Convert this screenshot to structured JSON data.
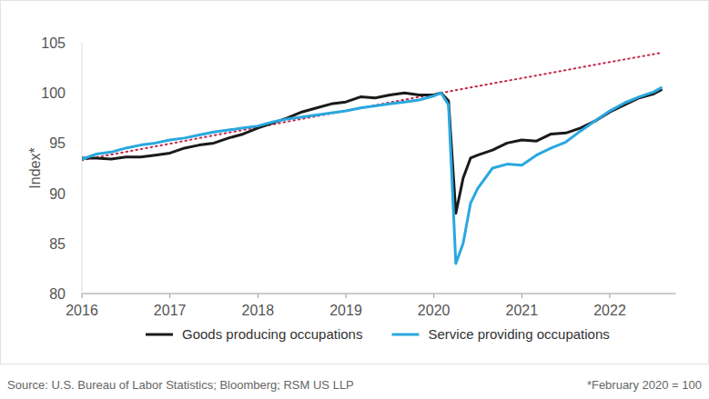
{
  "chart_data": {
    "type": "line",
    "y_label": "Index*",
    "source": "Source: U.S. Bureau of Labor Statistics; Bloomberg; RSM US LLP",
    "note": "*February 2020 = 100",
    "x": [
      2016.0,
      2016.167,
      2016.333,
      2016.5,
      2016.667,
      2016.833,
      2017.0,
      2017.167,
      2017.333,
      2017.5,
      2017.667,
      2017.833,
      2018.0,
      2018.167,
      2018.333,
      2018.5,
      2018.667,
      2018.833,
      2019.0,
      2019.167,
      2019.333,
      2019.5,
      2019.667,
      2019.833,
      2020.0,
      2020.083,
      2020.167,
      2020.25,
      2020.333,
      2020.417,
      2020.5,
      2020.667,
      2020.833,
      2021.0,
      2021.167,
      2021.333,
      2021.5,
      2021.667,
      2021.833,
      2022.0,
      2022.167,
      2022.333,
      2022.5,
      2022.583
    ],
    "series": [
      {
        "name": "Goods producing occupations",
        "color": "#1a1a1a",
        "line_style": "solid",
        "values": [
          93.5,
          93.5,
          93.4,
          93.6,
          93.6,
          93.8,
          94.0,
          94.5,
          94.8,
          95.0,
          95.5,
          95.9,
          96.5,
          97.0,
          97.5,
          98.1,
          98.5,
          98.9,
          99.1,
          99.6,
          99.5,
          99.8,
          100.0,
          99.8,
          99.8,
          100.0,
          99.2,
          88.0,
          91.5,
          93.5,
          93.8,
          94.3,
          95.0,
          95.3,
          95.2,
          95.9,
          96.0,
          96.5,
          97.2,
          98.1,
          98.8,
          99.5,
          99.9,
          100.3
        ]
      },
      {
        "name": "Service providing occupations",
        "color": "#29a8df",
        "line_style": "solid",
        "values": [
          93.4,
          93.9,
          94.1,
          94.5,
          94.8,
          95.0,
          95.3,
          95.5,
          95.8,
          96.1,
          96.3,
          96.5,
          96.7,
          97.1,
          97.4,
          97.6,
          97.8,
          98.0,
          98.2,
          98.5,
          98.7,
          98.9,
          99.1,
          99.3,
          99.7,
          100.0,
          98.8,
          83.0,
          85.0,
          89.0,
          90.5,
          92.5,
          92.9,
          92.8,
          93.8,
          94.5,
          95.1,
          96.2,
          97.2,
          98.2,
          99.0,
          99.6,
          100.1,
          100.5
        ]
      },
      {
        "color": "#c4264a",
        "line_style": "dotted",
        "x": [
          2016.0,
          2020.083,
          2022.583
        ],
        "values": [
          93.3,
          100.0,
          104.0
        ]
      }
    ],
    "xlim": [
      2016,
      2022.75
    ],
    "xticks": [
      2016,
      2017,
      2018,
      2019,
      2020,
      2021,
      2022
    ],
    "ylim": [
      80,
      105
    ],
    "yticks": [
      80,
      85,
      90,
      95,
      100,
      105
    ],
    "grid": false,
    "legend": "bottom"
  }
}
